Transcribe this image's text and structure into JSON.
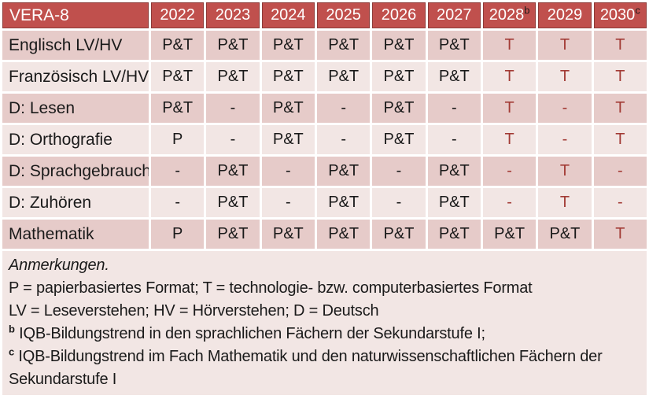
{
  "colors": {
    "header_bg": "#C0504D",
    "header_border": "#8D3A37",
    "header_text": "#FFFFFF",
    "row_dark": "#E6CBC9",
    "row_light": "#F2E6E4",
    "notes_bg": "#F2E6E4",
    "text_black": "#1A1A1A",
    "text_red": "#A23B35"
  },
  "table": {
    "title": "VERA-8",
    "columns": [
      {
        "label": "2022",
        "sup": ""
      },
      {
        "label": "2023",
        "sup": ""
      },
      {
        "label": "2024",
        "sup": ""
      },
      {
        "label": "2025",
        "sup": ""
      },
      {
        "label": "2026",
        "sup": ""
      },
      {
        "label": "2027",
        "sup": ""
      },
      {
        "label": "2028",
        "sup": "b"
      },
      {
        "label": "2029",
        "sup": ""
      },
      {
        "label": "2030",
        "sup": "c"
      }
    ],
    "rows": [
      {
        "label": "Englisch LV/HV",
        "cells": [
          {
            "v": "P&T",
            "red": false
          },
          {
            "v": "P&T",
            "red": false
          },
          {
            "v": "P&T",
            "red": false
          },
          {
            "v": "P&T",
            "red": false
          },
          {
            "v": "P&T",
            "red": false
          },
          {
            "v": "P&T",
            "red": false
          },
          {
            "v": "T",
            "red": true
          },
          {
            "v": "T",
            "red": true
          },
          {
            "v": "T",
            "red": true
          }
        ]
      },
      {
        "label": "Französisch LV/HV",
        "cells": [
          {
            "v": "P&T",
            "red": false
          },
          {
            "v": "P&T",
            "red": false
          },
          {
            "v": "P&T",
            "red": false
          },
          {
            "v": "P&T",
            "red": false
          },
          {
            "v": "P&T",
            "red": false
          },
          {
            "v": "P&T",
            "red": false
          },
          {
            "v": "T",
            "red": true
          },
          {
            "v": "T",
            "red": true
          },
          {
            "v": "T",
            "red": true
          }
        ]
      },
      {
        "label": "D: Lesen",
        "cells": [
          {
            "v": "P&T",
            "red": false
          },
          {
            "v": "-",
            "red": false
          },
          {
            "v": "P&T",
            "red": false
          },
          {
            "v": "-",
            "red": false
          },
          {
            "v": "P&T",
            "red": false
          },
          {
            "v": "-",
            "red": false
          },
          {
            "v": "T",
            "red": true
          },
          {
            "v": "-",
            "red": true
          },
          {
            "v": "T",
            "red": true
          }
        ]
      },
      {
        "label": "D: Orthografie",
        "cells": [
          {
            "v": "P",
            "red": false
          },
          {
            "v": "-",
            "red": false
          },
          {
            "v": "P&T",
            "red": false
          },
          {
            "v": "-",
            "red": false
          },
          {
            "v": "P&T",
            "red": false
          },
          {
            "v": "-",
            "red": false
          },
          {
            "v": "T",
            "red": true
          },
          {
            "v": "-",
            "red": true
          },
          {
            "v": "T",
            "red": true
          }
        ]
      },
      {
        "label": "D: Sprachgebrauch",
        "cells": [
          {
            "v": "-",
            "red": false
          },
          {
            "v": "P&T",
            "red": false
          },
          {
            "v": "-",
            "red": false
          },
          {
            "v": "P&T",
            "red": false
          },
          {
            "v": "-",
            "red": false
          },
          {
            "v": "P&T",
            "red": false
          },
          {
            "v": "-",
            "red": true
          },
          {
            "v": "T",
            "red": true
          },
          {
            "v": "-",
            "red": true
          }
        ]
      },
      {
        "label": "D: Zuhören",
        "cells": [
          {
            "v": "-",
            "red": false
          },
          {
            "v": "P&T",
            "red": false
          },
          {
            "v": "-",
            "red": false
          },
          {
            "v": "P&T",
            "red": false
          },
          {
            "v": "-",
            "red": false
          },
          {
            "v": "P&T",
            "red": false
          },
          {
            "v": "-",
            "red": true
          },
          {
            "v": "T",
            "red": true
          },
          {
            "v": "-",
            "red": true
          }
        ]
      },
      {
        "label": "Mathematik",
        "cells": [
          {
            "v": "P",
            "red": false
          },
          {
            "v": "P&T",
            "red": false
          },
          {
            "v": "P&T",
            "red": false
          },
          {
            "v": "P&T",
            "red": false
          },
          {
            "v": "P&T",
            "red": false
          },
          {
            "v": "P&T",
            "red": false
          },
          {
            "v": "P&T",
            "red": false
          },
          {
            "v": "P&T",
            "red": false
          },
          {
            "v": "T",
            "red": true
          }
        ]
      }
    ]
  },
  "notes": {
    "heading": "Anmerkungen.",
    "lines": [
      {
        "sup": "",
        "text": "P = papierbasiertes Format; T = technologie- bzw. computerbasiertes Format"
      },
      {
        "sup": "",
        "text": "LV = Leseverstehen; HV = Hörverstehen; D = Deutsch"
      },
      {
        "sup": "b",
        "text": "IQB-Bildungstrend in den sprachlichen Fächern der Sekundarstufe I;"
      },
      {
        "sup": "c",
        "text": "IQB-Bildungstrend im Fach Mathematik und den naturwissenschaftlichen Fächern der Sekundarstufe I"
      }
    ]
  }
}
